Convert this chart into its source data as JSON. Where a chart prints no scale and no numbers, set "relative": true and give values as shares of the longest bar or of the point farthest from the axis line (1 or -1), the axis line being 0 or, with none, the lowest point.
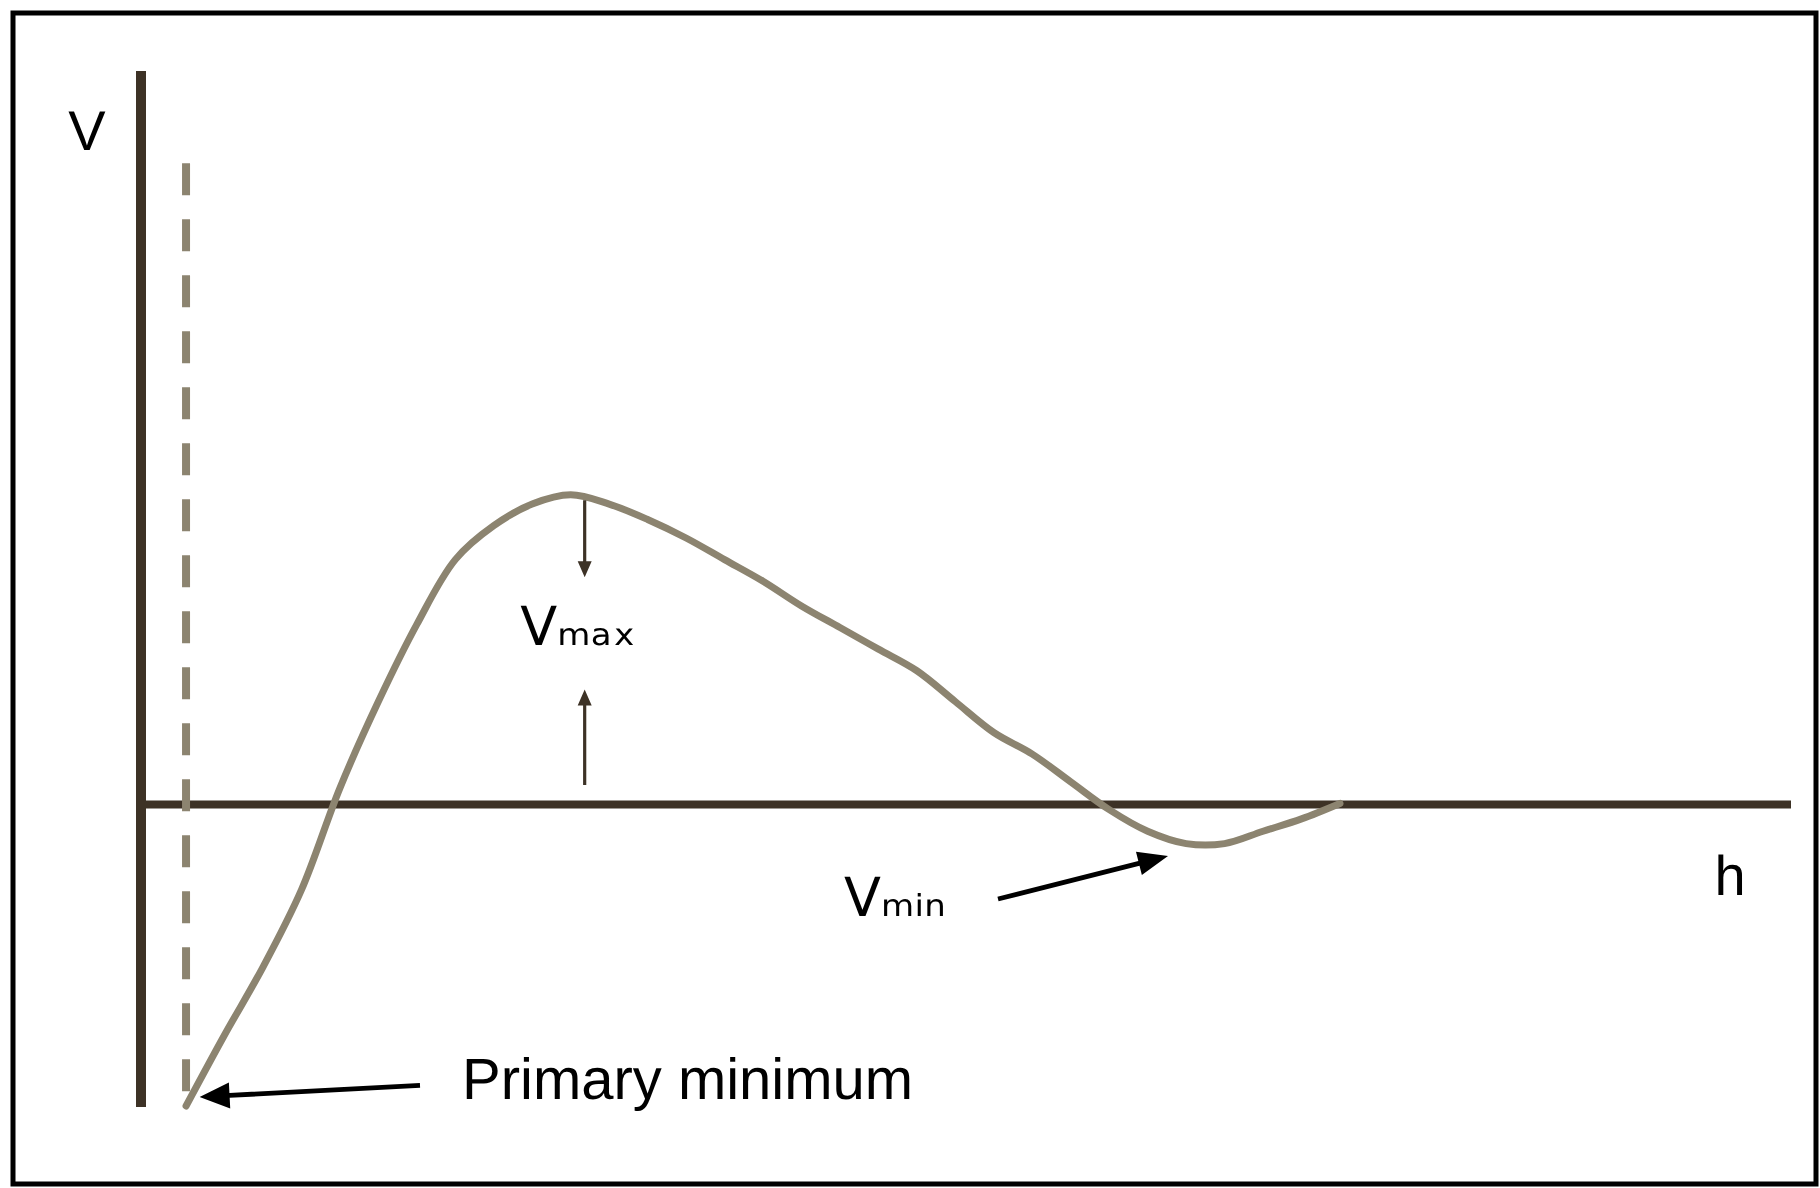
{
  "chart_data": {
    "type": "line",
    "relative": true,
    "categories": [
      null,
      null,
      null,
      null,
      null,
      null,
      null,
      null,
      null,
      null,
      null,
      null,
      null,
      null,
      null,
      null,
      null,
      null,
      null,
      null,
      null,
      null,
      null,
      null,
      null,
      null,
      null,
      null,
      null,
      null,
      null
    ],
    "series": [
      {
        "color": "#8c8470",
        "values": [
          -0.98,
          -0.75,
          -0.53,
          -0.28,
          0.05,
          0.33,
          0.58,
          0.79,
          0.9,
          0.97,
          1,
          0.97,
          0.92,
          0.86,
          0.79,
          0.72,
          0.64,
          0.57,
          0.5,
          0.43,
          0.33,
          0.23,
          0.16,
          0.07,
          -0.02,
          -0.09,
          -0.13,
          -0.13,
          -0.09,
          -0.05,
          0
        ]
      }
    ],
    "annotations": [
      "V",
      {
        "text": "Vₘₐₓ",
        "y": 1
      },
      "Vₘᵢₙ",
      "h",
      "Primary minimum"
    ]
  }
}
